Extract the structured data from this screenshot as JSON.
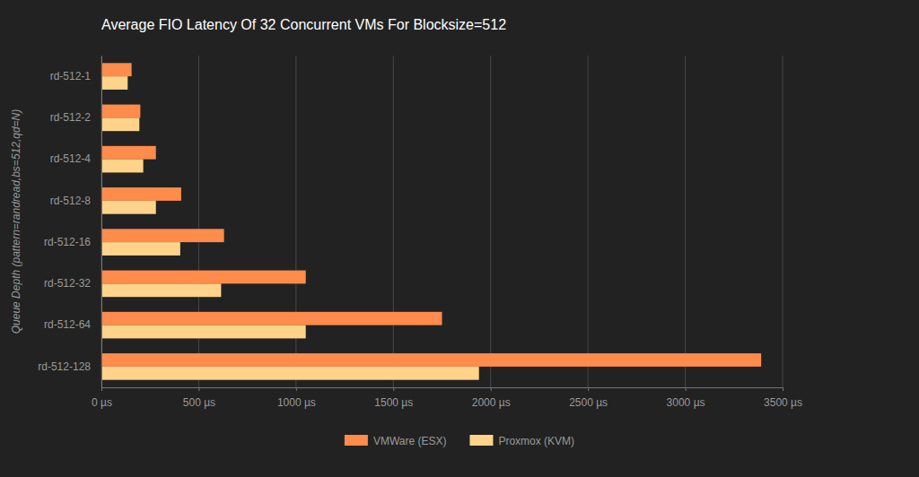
{
  "chart_data": {
    "type": "bar",
    "orientation": "horizontal",
    "title": "Average FIO Latency Of 32 Concurrent VMs For Blocksize=512",
    "ylabel": "Queue Depth (pattern=randread,bs=512,qd=N)",
    "categories": [
      "rd-512-1",
      "rd-512-2",
      "rd-512-4",
      "rd-512-8",
      "rd-512-16",
      "rd-512-32",
      "rd-512-64",
      "rd-512-128"
    ],
    "series": [
      {
        "name": "VMWare (ESX)",
        "color": "#ff8c4b",
        "values": [
          155,
          200,
          280,
          410,
          630,
          1050,
          1750,
          3390
        ]
      },
      {
        "name": "Proxmox (KVM)",
        "color": "#ffd48a",
        "values": [
          135,
          195,
          215,
          280,
          405,
          615,
          1050,
          1940
        ]
      }
    ],
    "xlim": [
      0,
      3500
    ],
    "xticks": [
      {
        "value": 0,
        "label": "0 µs"
      },
      {
        "value": 500,
        "label": "500 µs"
      },
      {
        "value": 1000,
        "label": "1000 µs"
      },
      {
        "value": 1500,
        "label": "1500 µs"
      },
      {
        "value": 2000,
        "label": "2000 µs"
      },
      {
        "value": 2500,
        "label": "2500 µs"
      },
      {
        "value": 3000,
        "label": "3000 µs"
      },
      {
        "value": 3500,
        "label": "3500 µs"
      }
    ],
    "grid": true,
    "legend": "bottom"
  }
}
